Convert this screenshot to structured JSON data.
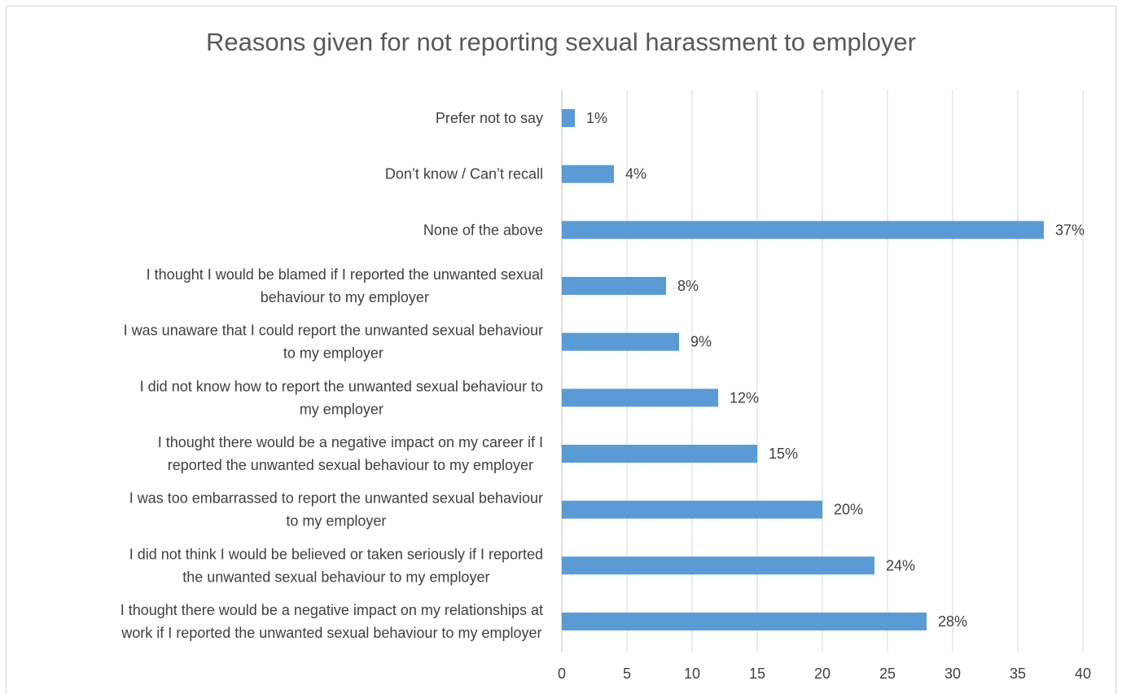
{
  "colors": {
    "bar": "#5b9bd5",
    "gridline": "#d9d9d9",
    "text": "#404040",
    "title": "#595959"
  },
  "chart_data": {
    "type": "bar",
    "orientation": "horizontal",
    "title": "Reasons given for not reporting sexual harassment to employer",
    "xlabel": "",
    "ylabel": "",
    "xlim": [
      0,
      40
    ],
    "x_ticks": [
      0,
      5,
      10,
      15,
      20,
      25,
      30,
      35,
      40
    ],
    "grid": true,
    "legend": "none",
    "categories": [
      [
        "Prefer not to say"
      ],
      [
        "Don’t know / Can’t recall"
      ],
      [
        "None of the above"
      ],
      [
        "I thought I would be blamed if I reported the unwanted sexual",
        "behaviour to my employer"
      ],
      [
        "I was unaware that I could report the unwanted sexual behaviour",
        "to my employer"
      ],
      [
        "I did not know how to report the unwanted sexual behaviour to",
        "my employer"
      ],
      [
        "I thought there would be a negative impact on my career if I",
        "reported the unwanted sexual behaviour to my employer"
      ],
      [
        "I was too embarrassed to report the unwanted sexual behaviour",
        "to my employer"
      ],
      [
        "I did not think I would be believed or taken seriously if I reported",
        "the unwanted sexual behaviour to my employer"
      ],
      [
        "I thought there would be a negative impact on my relationships at",
        "work if I reported the unwanted sexual behaviour to my employer"
      ]
    ],
    "values": [
      1,
      4,
      37,
      8,
      9,
      12,
      15,
      20,
      24,
      28
    ],
    "data_labels": [
      "1%",
      "4%",
      "37%",
      "8%",
      "9%",
      "12%",
      "15%",
      "20%",
      "24%",
      "28%"
    ]
  }
}
